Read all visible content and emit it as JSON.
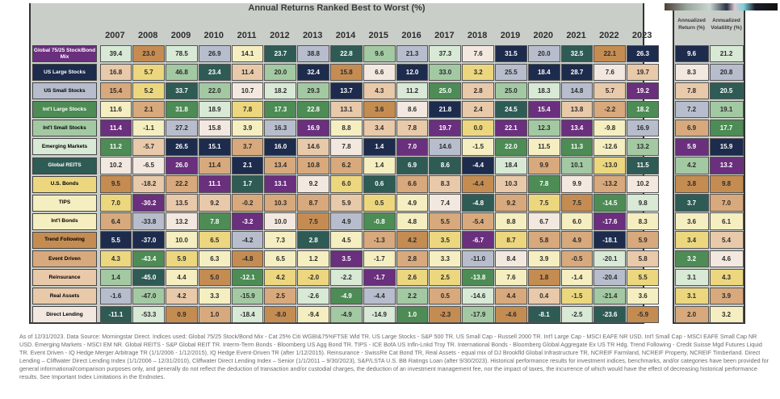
{
  "chart_data": {
    "type": "table",
    "title": "Annual Returns Ranked Best to Worst (%)",
    "years": [
      "2007",
      "2008",
      "2009",
      "2010",
      "2011",
      "2012",
      "2013",
      "2014",
      "2015",
      "2016",
      "2017",
      "2018",
      "2019",
      "2020",
      "2021",
      "2022",
      "2023"
    ],
    "assets": [
      {
        "label": "Global 75/25 Stock/Bond Mix",
        "color": "P"
      },
      {
        "label": "US Large Stocks",
        "color": "N"
      },
      {
        "label": "US Small Stocks",
        "color": "Gy"
      },
      {
        "label": "Int'l Large Stocks",
        "color": "Gr"
      },
      {
        "label": "Int'l Small Stocks",
        "color": "LG"
      },
      {
        "label": "Emerging Markets",
        "color": "VG"
      },
      {
        "label": "Global REITS",
        "color": "T"
      },
      {
        "label": "U.S. Bonds",
        "color": "Y"
      },
      {
        "label": "TIPS",
        "color": "PY"
      },
      {
        "label": "Int'l Bonds",
        "color": "PY"
      },
      {
        "label": "Trend Following",
        "color": "B"
      },
      {
        "label": "Event Driven",
        "color": "Tn"
      },
      {
        "label": "Reinsurance",
        "color": "LT"
      },
      {
        "label": "Real Assets",
        "color": "LT"
      },
      {
        "label": "Direct Lending",
        "color": "C"
      }
    ],
    "palette": {
      "P": "#6a2f7d",
      "N": "#1d2b4d",
      "Gy": "#b7bdcc",
      "Gr": "#4d8c55",
      "LG": "#a3c9a3",
      "VG": "#d8e9d6",
      "T": "#2f5b55",
      "Y": "#ecd77f",
      "PY": "#f5eec0",
      "B": "#c58c52",
      "Tn": "#d8a97c",
      "LT": "#e8c9a9",
      "C": "#f3e8df"
    },
    "columns": [
      {
        "year": "2007",
        "values": [
          "39.4",
          "16.8",
          "15.4",
          "11.6",
          "11.4",
          "11.2",
          "10.2",
          "9.5",
          "7.0",
          "6.4",
          "5.5",
          "4.3",
          "1.4",
          "-1.6",
          "-11.1"
        ],
        "colors": [
          "VG",
          "LT",
          "Tn",
          "PY",
          "P",
          "Gr",
          "C",
          "B",
          "Y",
          "Tn",
          "N",
          "Y",
          "LG",
          "Gy",
          "T"
        ]
      },
      {
        "year": "2008",
        "values": [
          "23.0",
          "5.7",
          "5.2",
          "2.1",
          "-1.1",
          "-5.7",
          "-6.5",
          "-18.2",
          "-30.2",
          "-33.8",
          "-37.0",
          "-43.4",
          "-45.0",
          "-47.0",
          "-53.3"
        ],
        "colors": [
          "B",
          "Y",
          "Y",
          "Tn",
          "PY",
          "LT",
          "C",
          "LT",
          "P",
          "Gy",
          "N",
          "Gr",
          "T",
          "LG",
          "VG"
        ]
      },
      {
        "year": "2009",
        "values": [
          "78.5",
          "46.8",
          "33.7",
          "31.8",
          "27.2",
          "26.5",
          "26.0",
          "22.2",
          "13.5",
          "13.2",
          "10.0",
          "5.9",
          "4.4",
          "4.2",
          "0.9"
        ],
        "colors": [
          "VG",
          "LG",
          "T",
          "Gr",
          "Gy",
          "N",
          "P",
          "Tn",
          "LT",
          "C",
          "PY",
          "Y",
          "PY",
          "LT",
          "B"
        ]
      },
      {
        "year": "2010",
        "values": [
          "26.9",
          "23.4",
          "22.0",
          "18.9",
          "15.8",
          "15.1",
          "11.4",
          "11.1",
          "9.2",
          "7.8",
          "6.5",
          "6.3",
          "5.0",
          "3.3",
          "1.0"
        ],
        "colors": [
          "Gy",
          "T",
          "LG",
          "VG",
          "C",
          "N",
          "Tn",
          "P",
          "LT",
          "Gr",
          "Y",
          "PY",
          "B",
          "PY",
          "Tn"
        ]
      },
      {
        "year": "2011",
        "values": [
          "14.1",
          "11.4",
          "10.7",
          "7.8",
          "3.9",
          "3.7",
          "2.1",
          "1.7",
          "-0.2",
          "-3.2",
          "-4.2",
          "-4.8",
          "-12.1",
          "-15.9",
          "-18.4"
        ],
        "colors": [
          "PY",
          "LT",
          "C",
          "Y",
          "PY",
          "Tn",
          "N",
          "T",
          "Tn",
          "P",
          "Gy",
          "B",
          "Gr",
          "LG",
          "VG"
        ]
      },
      {
        "year": "2012",
        "values": [
          "23.7",
          "20.0",
          "18.2",
          "17.3",
          "16.3",
          "16.0",
          "13.4",
          "13.1",
          "10.3",
          "10.0",
          "7.3",
          "6.5",
          "4.2",
          "2.5",
          "-8.0"
        ],
        "colors": [
          "T",
          "LG",
          "VG",
          "Gr",
          "Gy",
          "N",
          "Tn",
          "P",
          "Tn",
          "C",
          "PY",
          "PY",
          "Y",
          "Tn",
          "B"
        ]
      },
      {
        "year": "2013",
        "values": [
          "38.8",
          "32.4",
          "29.3",
          "22.8",
          "16.9",
          "14.6",
          "10.8",
          "9.2",
          "8.7",
          "7.5",
          "2.8",
          "1.2",
          "-2.0",
          "-2.6",
          "-9.4"
        ],
        "colors": [
          "Gy",
          "N",
          "LG",
          "Gr",
          "P",
          "LT",
          "Tn",
          "C",
          "Tn",
          "B",
          "T",
          "PY",
          "Y",
          "VG",
          "PY"
        ]
      },
      {
        "year": "2014",
        "values": [
          "22.8",
          "15.8",
          "13.7",
          "13.1",
          "8.8",
          "7.8",
          "6.2",
          "6.0",
          "5.9",
          "4.9",
          "4.5",
          "3.5",
          "-2.2",
          "-4.9",
          "-4.9"
        ],
        "colors": [
          "T",
          "B",
          "N",
          "LT",
          "PY",
          "C",
          "Tn",
          "Y",
          "LT",
          "Gy",
          "PY",
          "P",
          "VG",
          "Gr",
          "LG"
        ]
      },
      {
        "year": "2015",
        "values": [
          "9.6",
          "6.6",
          "4.3",
          "3.6",
          "3.4",
          "1.4",
          "1.4",
          "0.6",
          "0.5",
          "-0.8",
          "-1.3",
          "-1.7",
          "-1.7",
          "-4.4",
          "-14.9"
        ],
        "colors": [
          "LG",
          "C",
          "LT",
          "B",
          "LT",
          "N",
          "PY",
          "T",
          "Y",
          "Gr",
          "Tn",
          "PY",
          "P",
          "Gy",
          "VG"
        ]
      },
      {
        "year": "2016",
        "values": [
          "21.3",
          "12.0",
          "11.2",
          "8.6",
          "7.8",
          "7.0",
          "6.9",
          "6.6",
          "4.9",
          "4.8",
          "4.2",
          "2.8",
          "2.6",
          "2.2",
          "1.0"
        ],
        "colors": [
          "Gy",
          "N",
          "VG",
          "C",
          "LT",
          "P",
          "T",
          "Tn",
          "PY",
          "PY",
          "B",
          "Tn",
          "Y",
          "LG",
          "Gr"
        ]
      },
      {
        "year": "2017",
        "values": [
          "37.3",
          "33.0",
          "25.0",
          "21.8",
          "19.7",
          "14.6",
          "8.6",
          "8.3",
          "7.4",
          "5.5",
          "3.5",
          "3.3",
          "2.5",
          "0.5",
          "-2.3"
        ],
        "colors": [
          "VG",
          "LG",
          "Gr",
          "N",
          "P",
          "Gy",
          "T",
          "LT",
          "C",
          "Tn",
          "Y",
          "PY",
          "Y",
          "Tn",
          "B"
        ]
      },
      {
        "year": "2018",
        "values": [
          "7.6",
          "3.2",
          "2.8",
          "2.4",
          "0.0",
          "-1.5",
          "-4.4",
          "-4.4",
          "-4.8",
          "-5.4",
          "-6.7",
          "-11.0",
          "-13.8",
          "-14.6",
          "-17.9"
        ],
        "colors": [
          "C",
          "Y",
          "LT",
          "LT",
          "Y",
          "PY",
          "N",
          "B",
          "T",
          "Tn",
          "P",
          "Gy",
          "Gr",
          "VG",
          "LG"
        ]
      },
      {
        "year": "2019",
        "values": [
          "31.5",
          "25.5",
          "25.0",
          "24.5",
          "22.1",
          "22.0",
          "18.4",
          "10.3",
          "9.2",
          "8.8",
          "8.7",
          "8.4",
          "7.6",
          "4.4",
          "-4.6"
        ],
        "colors": [
          "N",
          "Gy",
          "LG",
          "T",
          "P",
          "Gr",
          "VG",
          "LT",
          "Tn",
          "PY",
          "Y",
          "C",
          "PY",
          "Tn",
          "B"
        ]
      },
      {
        "year": "2020",
        "values": [
          "20.0",
          "18.4",
          "18.3",
          "15.4",
          "12.3",
          "11.5",
          "9.9",
          "7.8",
          "7.5",
          "6.7",
          "5.8",
          "3.9",
          "1.8",
          "0.4",
          "-8.1"
        ],
        "colors": [
          "Gy",
          "N",
          "VG",
          "P",
          "LG",
          "PY",
          "Tn",
          "Gr",
          "Y",
          "C",
          "Tn",
          "PY",
          "B",
          "LT",
          "T"
        ]
      },
      {
        "year": "2021",
        "values": [
          "32.5",
          "28.7",
          "14.8",
          "13.8",
          "13.4",
          "11.3",
          "10.1",
          "9.9",
          "7.5",
          "6.0",
          "4.9",
          "-0.5",
          "-1.4",
          "-1.5",
          "-2.5"
        ],
        "colors": [
          "T",
          "N",
          "Gy",
          "LT",
          "P",
          "Gr",
          "LG",
          "C",
          "B",
          "PY",
          "Tn",
          "Tn",
          "PY",
          "Y",
          "VG"
        ]
      },
      {
        "year": "2022",
        "values": [
          "22.1",
          "7.6",
          "5.7",
          "-2.2",
          "-9.8",
          "-12.6",
          "-13.0",
          "-13.2",
          "-14.5",
          "-17.6",
          "-18.1",
          "-20.1",
          "-20.4",
          "-21.4",
          "-23.6"
        ],
        "colors": [
          "B",
          "C",
          "LT",
          "Tn",
          "PY",
          "PY",
          "Y",
          "Tn",
          "Gr",
          "P",
          "N",
          "VG",
          "Gy",
          "LG",
          "T"
        ]
      },
      {
        "year": "2023",
        "values": [
          "26.3",
          "19.7",
          "19.2",
          "18.2",
          "16.9",
          "13.2",
          "11.5",
          "10.2",
          "9.8",
          "8.3",
          "5.9",
          "5.8",
          "5.5",
          "3.6",
          "-5.9"
        ],
        "colors": [
          "N",
          "LT",
          "P",
          "Gr",
          "Gy",
          "LG",
          "T",
          "C",
          "VG",
          "PY",
          "Tn",
          "LT",
          "Y",
          "PY",
          "B"
        ]
      }
    ],
    "side_headers": [
      "Annualized Return (%)",
      "Annualized Volatility (%)"
    ],
    "annualized_return": {
      "values": [
        "9.6",
        "8.3",
        "7.8",
        "7.2",
        "6.9",
        "5.9",
        "4.2",
        "3.8",
        "3.7",
        "3.6",
        "3.4",
        "3.2",
        "3.1",
        "3.1",
        "2.0"
      ],
      "colors": [
        "N",
        "C",
        "LT",
        "Gy",
        "Tn",
        "P",
        "LG",
        "B",
        "T",
        "PY",
        "Y",
        "Gr",
        "VG",
        "Y",
        "Tn"
      ]
    },
    "annualized_volatility": {
      "values": [
        "21.2",
        "20.8",
        "20.5",
        "19.1",
        "17.7",
        "15.9",
        "13.2",
        "9.8",
        "7.0",
        "6.1",
        "5.4",
        "4.6",
        "4.3",
        "3.9",
        "3.2"
      ],
      "colors": [
        "VG",
        "Gy",
        "T",
        "LG",
        "Gr",
        "N",
        "P",
        "B",
        "Tn",
        "PY",
        "LT",
        "C",
        "Y",
        "Tn",
        "PY"
      ]
    }
  },
  "footnote": "As of 12/31/2023. Data Source: Morningstar Direct. Indices used: Global 75/25 Stock/Bond Mix - Cat 25% Citi WGBI&75%FTSE Wld TR. US Large Stocks - S&P 500 TR. US Small Cap - Russell 2000 TR. Int'l Large Cap - MSCI EAFE NR USD. Int'l Small Cap - MSCI EAFE Small Cap NR USD. Emerging Markets - MSCI EM NR. Global REITS - S&P Global REIT TR. Interm-Term Bonds - Bloomberg US Agg Bond TR. TIPS - ICE BofA US Infln-Lnkd Trsy TR. International Bonds - Bloomberg Global Aggregate Ex US TR Hdg. Trend Following - Credit Suisse Mgd Futures Liquid TR. Event Driven - IQ Hedge Merger Arbitrage TR (1/1/2006 - 1/12/2015), IQ Hedge Event-Driven TR (after 1/12/2015). Reinsurance - SwissRe Cat Bond TR, Real Assets - equal mix of DJ Brookfld Global Infrastructure TR, NCREIF Farmland, NCREIF Property, NCREIF Timberland. Direct Lending – Cliffwater Direct Lending Index (1/1/2006 – 12/31/2010), Cliffwater Direct Lending Index – Senior (1/1/2011 – 9/30/2023), S&P/LSTA U.S. BB Ratings Loan (after 9/30/2023). Historical performance results for investment indices, benchmarks, and/or categories have been provided for general informational/comparison purposes only, and generally do not reflect the deduction of transaction and/or custodial charges, the deduction of an investment management fee, nor the impact of taxes, the incurrence of which would have the effect of decreasing historical performance results. See Important Index Limitations in the Endnotes."
}
